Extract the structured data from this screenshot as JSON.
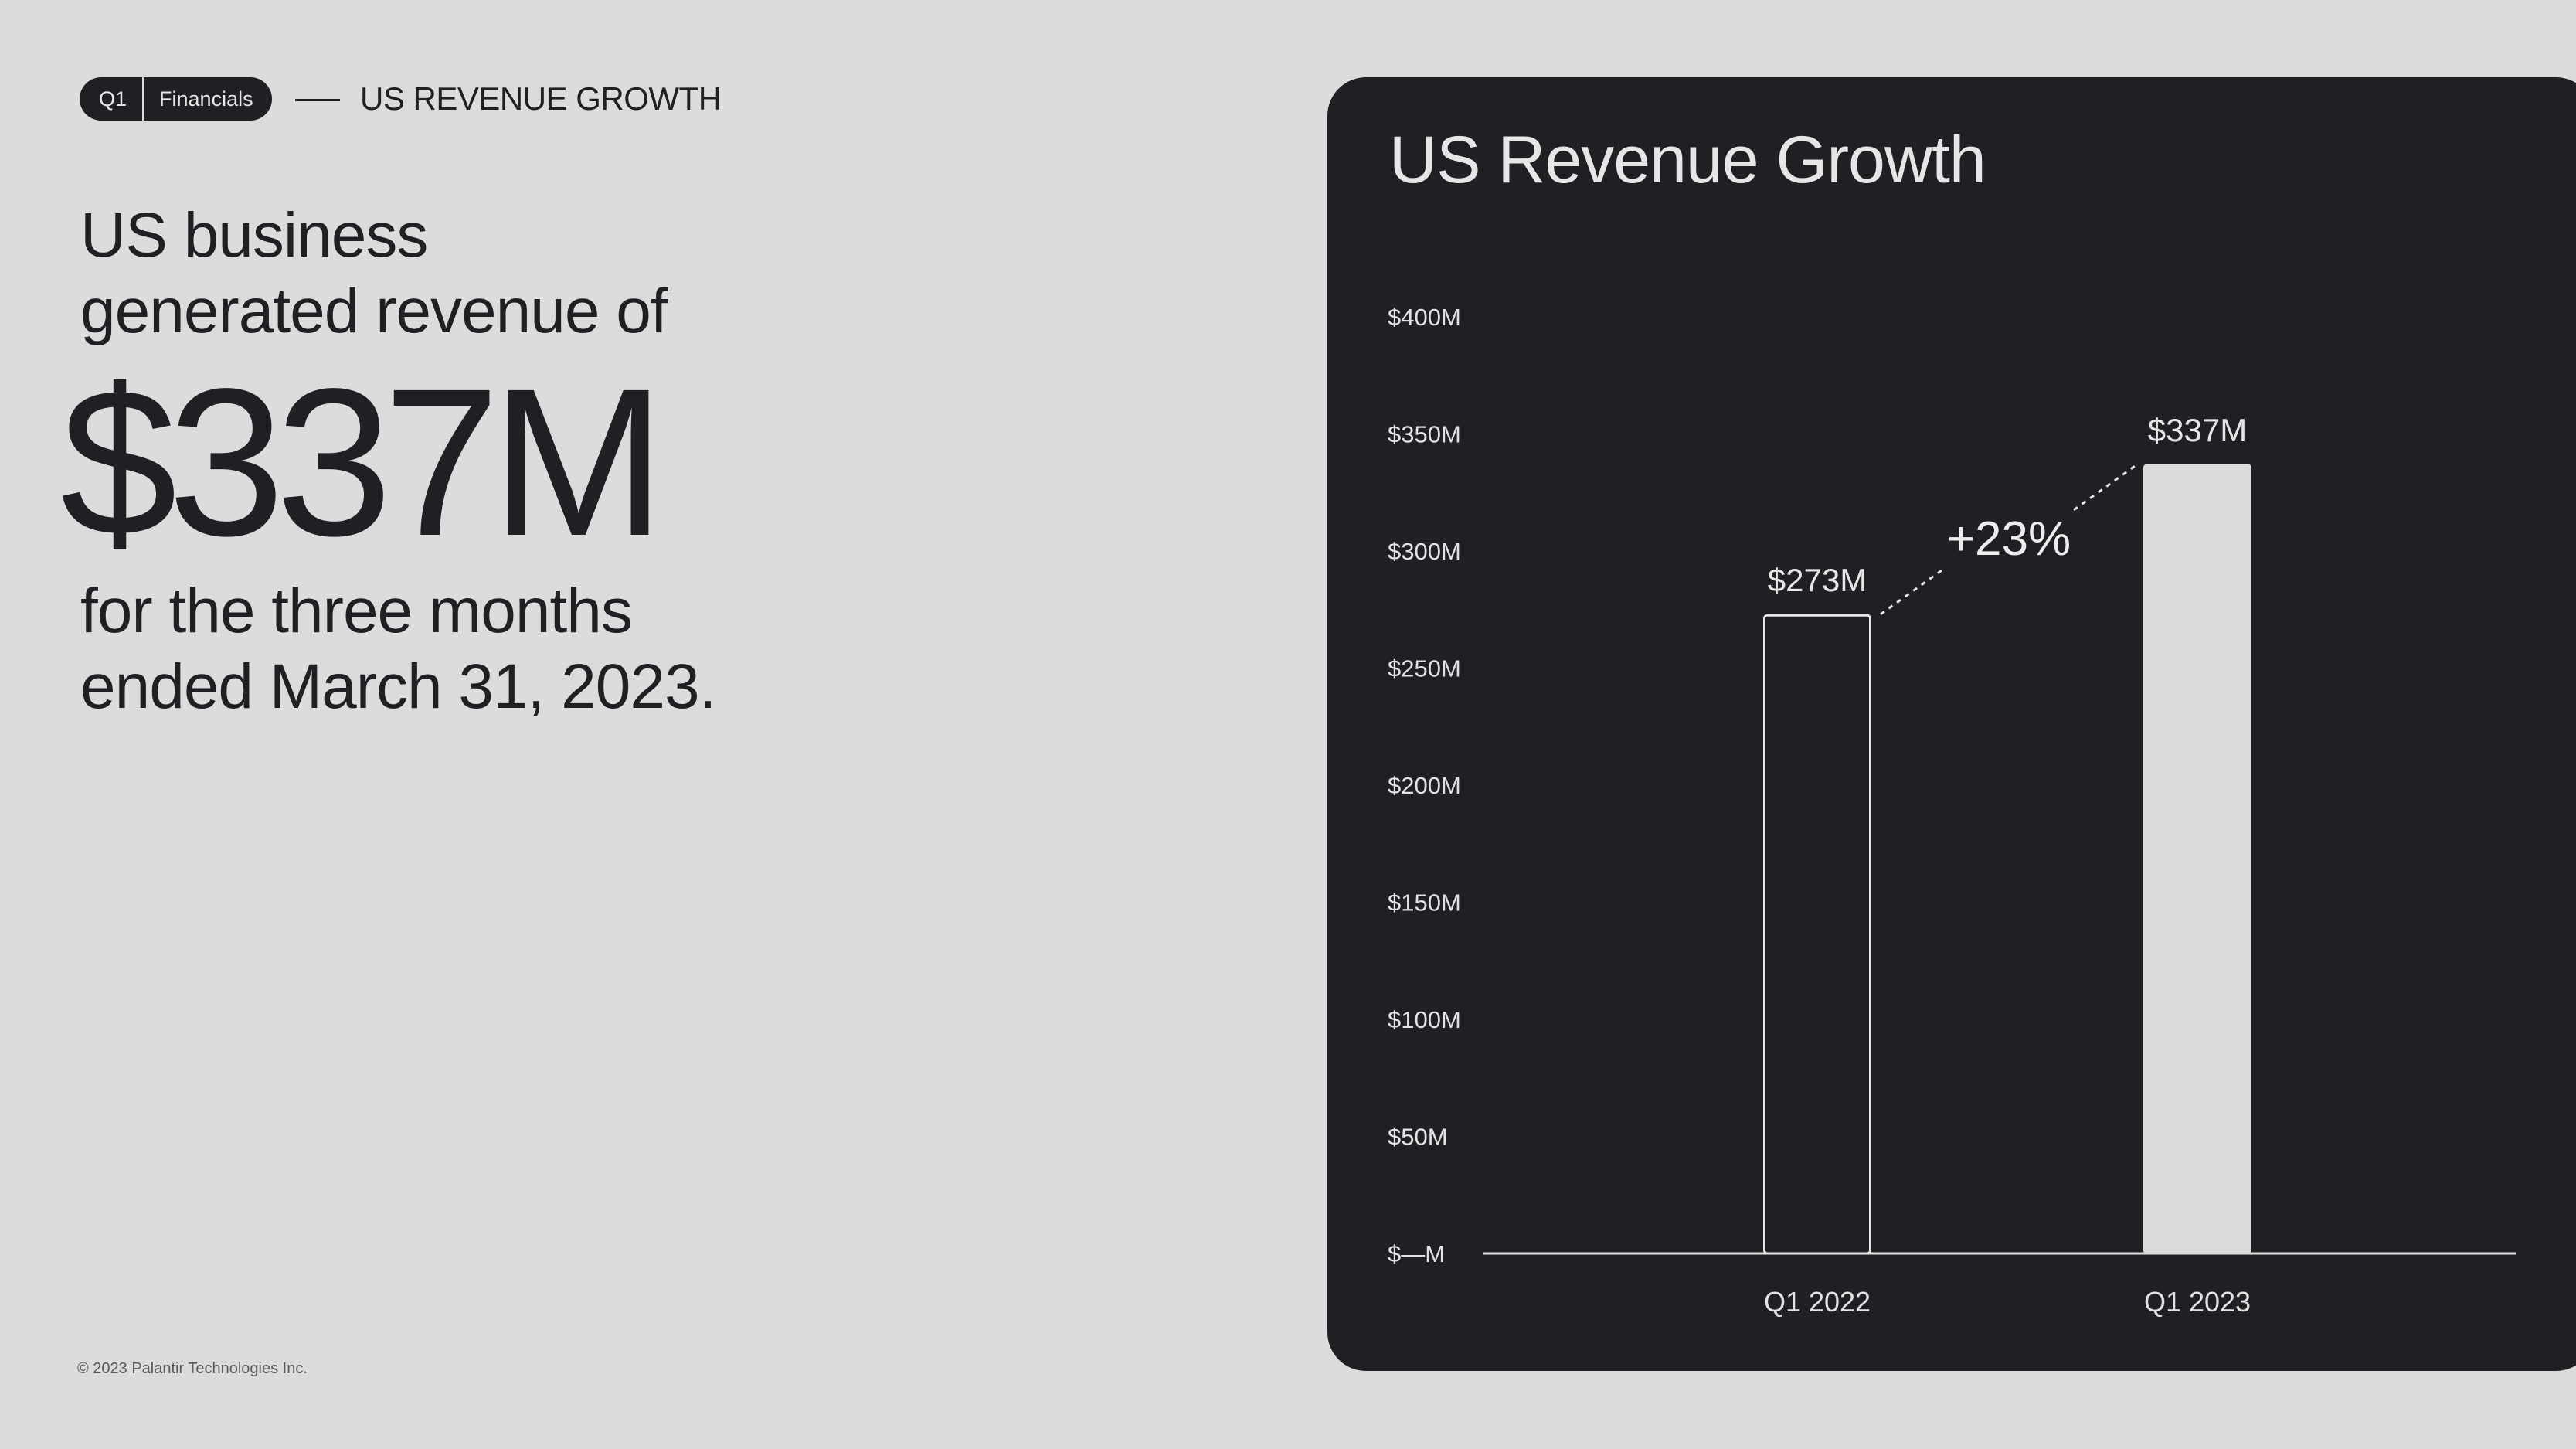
{
  "badge": {
    "quarter": "Q1",
    "section": "Financials"
  },
  "header": {
    "title": "US REVENUE GROWTH"
  },
  "headline": {
    "intro_line1": "US business",
    "intro_line2": "generated revenue of",
    "amount": "$337M",
    "outro_line1": "for the three months",
    "outro_line2": "ended March 31, 2023."
  },
  "footer": {
    "copyright": "© 2023 Palantir Technologies Inc."
  },
  "colors": {
    "background": "#dcdcdc",
    "panel": "#1f2024",
    "text_dark": "#1f2024",
    "text_light": "#e6e6e6",
    "bar_filled": "#dcdcdc"
  },
  "chart_data": {
    "type": "bar",
    "title": "US Revenue Growth",
    "categories": [
      "Q1 2022",
      "Q1 2023"
    ],
    "values": [
      273,
      337
    ],
    "data_labels": [
      "$273M",
      "$337M"
    ],
    "bar_styles": [
      "outline",
      "filled"
    ],
    "ylim": [
      0,
      400
    ],
    "yticks": [
      0,
      50,
      100,
      150,
      200,
      250,
      300,
      350,
      400
    ],
    "ytick_labels": [
      "$—M",
      "$50M",
      "$100M",
      "$150M",
      "$200M",
      "$250M",
      "$300M",
      "$350M",
      "$400M"
    ],
    "growth_annotation": "+23%",
    "grid": false,
    "legend": "none"
  }
}
